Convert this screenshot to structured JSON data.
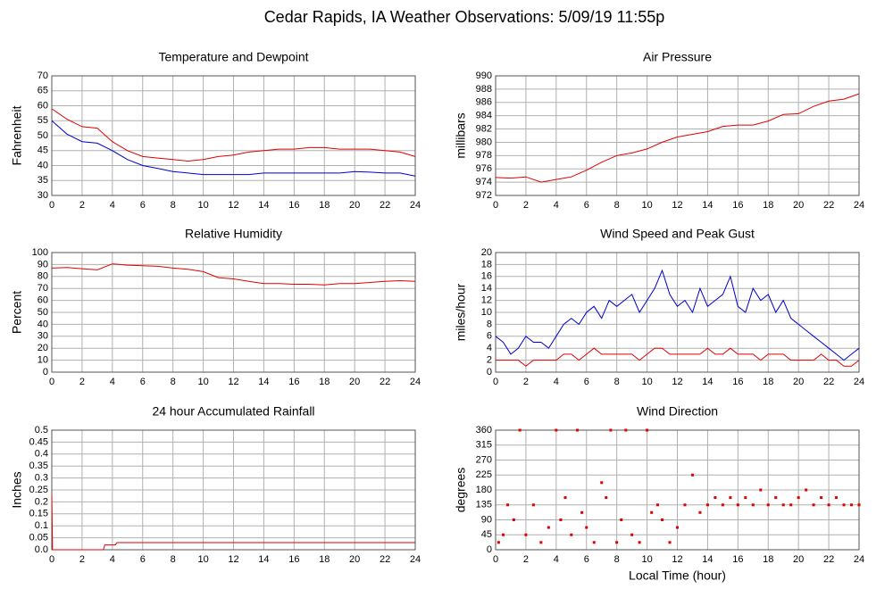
{
  "title": "Cedar Rapids, IA Weather Observations: 5/09/19 11:55p",
  "chart_data": [
    {
      "type": "line",
      "title": "Temperature and Dewpoint",
      "ylabel": "Fahrenheit",
      "grid": true,
      "xlim": [
        0,
        24
      ],
      "xticks": [
        0,
        2,
        4,
        6,
        8,
        10,
        12,
        14,
        16,
        18,
        20,
        22,
        24
      ],
      "ylim": [
        30,
        70
      ],
      "yticks": [
        30,
        35,
        40,
        45,
        50,
        55,
        60,
        65,
        70
      ],
      "x": [
        0,
        1,
        2,
        3,
        4,
        5,
        6,
        7,
        8,
        9,
        10,
        11,
        12,
        13,
        14,
        15,
        16,
        17,
        18,
        19,
        20,
        21,
        22,
        23,
        24
      ],
      "series": [
        {
          "color": "#e00000",
          "values": [
            59,
            55.5,
            53,
            52.5,
            48,
            45,
            43,
            42.5,
            42,
            41.5,
            42,
            43,
            43.5,
            44.5,
            45,
            45.5,
            45.5,
            46,
            46,
            45.5,
            45.5,
            45.5,
            45,
            44.5,
            43
          ]
        },
        {
          "color": "#0000d0",
          "values": [
            55,
            50.5,
            48,
            47.5,
            45,
            42,
            40,
            39,
            38,
            37.5,
            37,
            37,
            37,
            37,
            37.5,
            37.5,
            37.5,
            37.5,
            37.5,
            37.5,
            38,
            37.8,
            37.5,
            37.5,
            36.5
          ]
        }
      ]
    },
    {
      "type": "line",
      "title": "Air Pressure",
      "ylabel": "millibars",
      "grid": true,
      "xlim": [
        0,
        24
      ],
      "xticks": [
        0,
        2,
        4,
        6,
        8,
        10,
        12,
        14,
        16,
        18,
        20,
        22,
        24
      ],
      "ylim": [
        972,
        990
      ],
      "yticks": [
        972,
        974,
        976,
        978,
        980,
        982,
        984,
        986,
        988,
        990
      ],
      "x": [
        0,
        1,
        2,
        3,
        4,
        5,
        6,
        7,
        8,
        9,
        10,
        11,
        12,
        13,
        14,
        15,
        16,
        17,
        18,
        19,
        20,
        21,
        22,
        23,
        24
      ],
      "series": [
        {
          "color": "#e00000",
          "values": [
            974.7,
            974.6,
            974.8,
            974,
            974.4,
            974.8,
            975.8,
            977,
            978,
            978.4,
            979,
            980,
            980.8,
            981.2,
            981.6,
            982.4,
            982.6,
            982.6,
            983.2,
            984.2,
            984.3,
            985.4,
            986.2,
            986.5,
            987.3
          ]
        }
      ]
    },
    {
      "type": "line",
      "title": "Relative Humidity",
      "ylabel": "Percent",
      "grid": true,
      "xlim": [
        0,
        24
      ],
      "xticks": [
        0,
        2,
        4,
        6,
        8,
        10,
        12,
        14,
        16,
        18,
        20,
        22,
        24
      ],
      "ylim": [
        0,
        100
      ],
      "yticks": [
        0,
        10,
        20,
        30,
        40,
        50,
        60,
        70,
        80,
        90,
        100
      ],
      "x": [
        0,
        1,
        2,
        3,
        4,
        5,
        6,
        7,
        8,
        9,
        10,
        11,
        12,
        13,
        14,
        15,
        16,
        17,
        18,
        19,
        20,
        21,
        22,
        23,
        24
      ],
      "series": [
        {
          "color": "#e00000",
          "values": [
            87,
            87.5,
            86.5,
            85.5,
            90.5,
            89.5,
            89,
            88.5,
            87,
            86,
            84,
            79,
            78,
            76,
            74,
            74,
            73.5,
            73.5,
            73,
            74,
            74,
            75,
            76,
            76.5,
            76
          ]
        }
      ]
    },
    {
      "type": "line",
      "title": "Wind Speed and Peak Gust",
      "ylabel": "miles/hour",
      "grid": true,
      "xlim": [
        0,
        24
      ],
      "xticks": [
        0,
        2,
        4,
        6,
        8,
        10,
        12,
        14,
        16,
        18,
        20,
        22,
        24
      ],
      "ylim": [
        0,
        20
      ],
      "yticks": [
        0,
        2,
        4,
        6,
        8,
        10,
        12,
        14,
        16,
        18,
        20
      ],
      "x": [
        0,
        0.5,
        1,
        1.5,
        2,
        2.5,
        3,
        3.5,
        4,
        4.5,
        5,
        5.5,
        6,
        6.5,
        7,
        7.5,
        8,
        8.5,
        9,
        9.5,
        10,
        10.5,
        11,
        11.5,
        12,
        12.5,
        13,
        13.5,
        14,
        14.5,
        15,
        15.5,
        16,
        16.5,
        17,
        17.5,
        18,
        18.5,
        19,
        19.5,
        20,
        20.5,
        21,
        21.5,
        22,
        22.5,
        23,
        23.5,
        24
      ],
      "series": [
        {
          "color": "#0000d0",
          "values": [
            6,
            5,
            3,
            4,
            6,
            5,
            5,
            4,
            6,
            8,
            9,
            8,
            10,
            11,
            9,
            12,
            11,
            12,
            13,
            10,
            12,
            14,
            17,
            13,
            11,
            12,
            10,
            14,
            11,
            12,
            13,
            16,
            11,
            10,
            14,
            12,
            13,
            10,
            12,
            9,
            8,
            7,
            6,
            5,
            4,
            3,
            2,
            3,
            4
          ]
        },
        {
          "color": "#e00000",
          "values": [
            2,
            2,
            2,
            2,
            1,
            2,
            2,
            2,
            2,
            3,
            3,
            2,
            3,
            4,
            3,
            3,
            3,
            3,
            3,
            2,
            3,
            4,
            4,
            3,
            3,
            3,
            3,
            3,
            4,
            3,
            3,
            4,
            3,
            3,
            3,
            2,
            3,
            3,
            3,
            2,
            2,
            2,
            2,
            3,
            2,
            2,
            1,
            1,
            2
          ]
        }
      ]
    },
    {
      "type": "line",
      "title": "24 hour Accumulated Rainfall",
      "ylabel": "Inches",
      "grid": true,
      "xlim": [
        0,
        24
      ],
      "xticks": [
        0,
        2,
        4,
        6,
        8,
        10,
        12,
        14,
        16,
        18,
        20,
        22,
        24
      ],
      "ylim": [
        0,
        0.5
      ],
      "yticks": [
        {
          "value": 0,
          "label": "0.0"
        },
        0.05,
        0.1,
        0.15,
        0.2,
        0.25,
        0.3,
        0.35,
        0.4,
        0.45,
        0.5
      ],
      "x": [
        0,
        0.05,
        0.1,
        3.4,
        3.5,
        4.2,
        4.3,
        24
      ],
      "series": [
        {
          "color": "#e00000",
          "values": [
            0.23,
            0,
            0,
            0,
            0.02,
            0.02,
            0.03,
            0.03
          ]
        }
      ]
    },
    {
      "type": "scatter",
      "title": "Wind Direction",
      "ylabel": "degrees",
      "xlabel": "Local Time (hour)",
      "grid": true,
      "xlim": [
        0,
        24
      ],
      "xticks": [
        0,
        2,
        4,
        6,
        8,
        10,
        12,
        14,
        16,
        18,
        20,
        22,
        24
      ],
      "ylim": [
        0,
        360
      ],
      "yticks": [
        0,
        45,
        90,
        135,
        180,
        225,
        270,
        315,
        360
      ],
      "x": [
        0.2,
        0.5,
        0.8,
        1.2,
        1.6,
        2,
        2.5,
        3,
        3.5,
        4,
        4.3,
        4.6,
        5,
        5.4,
        5.7,
        6,
        6.5,
        7,
        7.3,
        7.6,
        8,
        8.3,
        8.6,
        9,
        9.5,
        10,
        10.3,
        10.7,
        11,
        11.5,
        12,
        12.5,
        13,
        13.5,
        14,
        14.5,
        15,
        15.5,
        16,
        16.5,
        17,
        17.5,
        18,
        18.5,
        19,
        19.5,
        20,
        20.5,
        21,
        21.5,
        22,
        22.5,
        23,
        23.5,
        24
      ],
      "series": [
        {
          "color": "#e00000",
          "values": [
            22,
            45,
            135,
            90,
            360,
            45,
            135,
            22,
            67,
            360,
            90,
            157,
            45,
            360,
            112,
            67,
            22,
            202,
            157,
            360,
            22,
            90,
            360,
            45,
            22,
            360,
            112,
            135,
            90,
            22,
            67,
            135,
            225,
            112,
            135,
            157,
            135,
            157,
            135,
            157,
            135,
            180,
            135,
            157,
            135,
            135,
            157,
            180,
            135,
            157,
            135,
            157,
            135,
            135,
            135
          ]
        }
      ]
    }
  ]
}
